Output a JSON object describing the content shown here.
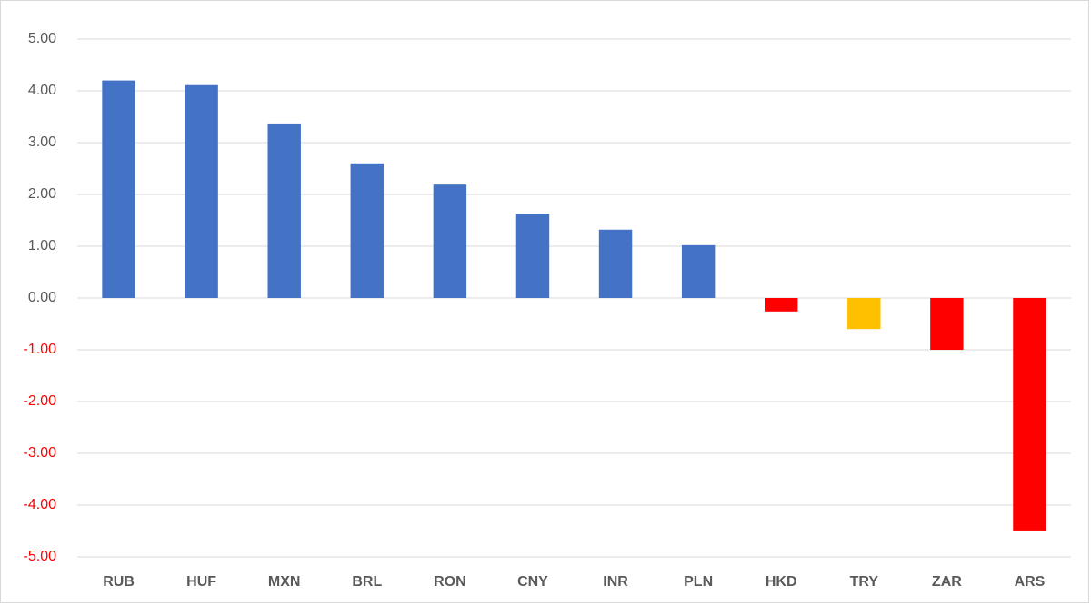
{
  "chart_data": {
    "type": "bar",
    "categories": [
      "RUB",
      "HUF",
      "MXN",
      "BRL",
      "RON",
      "CNY",
      "INR",
      "PLN",
      "HKD",
      "TRY",
      "ZAR",
      "ARS"
    ],
    "values": [
      4.2,
      4.11,
      3.37,
      2.6,
      2.19,
      1.63,
      1.32,
      1.02,
      -0.26,
      -0.6,
      -1.0,
      -4.49
    ],
    "colors": [
      "#4472c4",
      "#4472c4",
      "#4472c4",
      "#4472c4",
      "#4472c4",
      "#4472c4",
      "#4472c4",
      "#4472c4",
      "#ff0000",
      "#ffc000",
      "#ff0000",
      "#ff0000"
    ],
    "ylim": [
      -5,
      5
    ],
    "yticks": [
      {
        "value": -5,
        "label": "-5.00"
      },
      {
        "value": -4,
        "label": "-4.00"
      },
      {
        "value": -3,
        "label": "-3.00"
      },
      {
        "value": -2,
        "label": "-2.00"
      },
      {
        "value": -1,
        "label": "-1.00"
      },
      {
        "value": 0,
        "label": "0.00"
      },
      {
        "value": 1,
        "label": "1.00"
      },
      {
        "value": 2,
        "label": "2.00"
      },
      {
        "value": 3,
        "label": "3.00"
      },
      {
        "value": 4,
        "label": "4.00"
      },
      {
        "value": 5,
        "label": "5.00"
      }
    ],
    "tick_color": "#595959",
    "negative_tick_color": "#ff0000",
    "grid": true
  }
}
